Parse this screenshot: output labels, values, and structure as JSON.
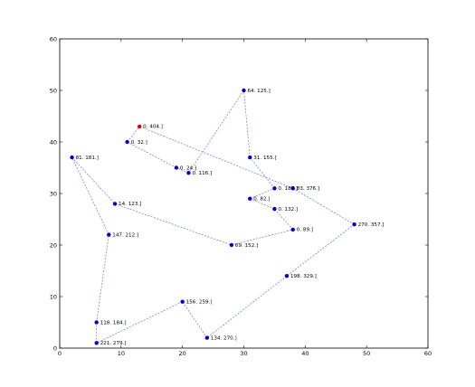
{
  "chart_data": {
    "type": "scatter",
    "title": "",
    "xlabel": "",
    "ylabel": "",
    "xlim": [
      0,
      60
    ],
    "ylim": [
      0,
      60
    ],
    "x_ticks": [
      0,
      10,
      20,
      30,
      40,
      50,
      60
    ],
    "y_ticks": [
      0,
      10,
      20,
      30,
      40,
      50,
      60
    ],
    "grid": false,
    "route_color": "#6b77c8",
    "point_color": "#0000cc",
    "start_color": "#dd0000",
    "points": [
      {
        "x": 13,
        "y": 43,
        "label": "0.  404.]",
        "start": true
      },
      {
        "x": 11,
        "y": 40,
        "label": "0.  32.]"
      },
      {
        "x": 19,
        "y": 35,
        "label": "0.  24.]"
      },
      {
        "x": 21,
        "y": 34,
        "label": "0.  116.]"
      },
      {
        "x": 30,
        "y": 50,
        "label": "64.  125.]"
      },
      {
        "x": 31,
        "y": 37,
        "label": "31.  155.]"
      },
      {
        "x": 35,
        "y": 31,
        "label": "0.  187.]"
      },
      {
        "x": 38,
        "y": 31,
        "label": "83.  376.]"
      },
      {
        "x": 31,
        "y": 29,
        "label": "0.  82.]"
      },
      {
        "x": 35,
        "y": 27,
        "label": "0.  132.]"
      },
      {
        "x": 38,
        "y": 23,
        "label": "0.  89.]"
      },
      {
        "x": 48,
        "y": 24,
        "label": "270.  357.]"
      },
      {
        "x": 37,
        "y": 14,
        "label": "198.  329.]"
      },
      {
        "x": 24,
        "y": 2,
        "label": "134.  270.]"
      },
      {
        "x": 20,
        "y": 9,
        "label": "156.  259.]"
      },
      {
        "x": 6,
        "y": 5,
        "label": "118.  184.]"
      },
      {
        "x": 6,
        "y": 1,
        "label": "221.  279.]"
      },
      {
        "x": 8,
        "y": 22,
        "label": "147.  212.]"
      },
      {
        "x": 2,
        "y": 37,
        "label": "81.  181.]"
      },
      {
        "x": 9,
        "y": 28,
        "label": "14.  123.]"
      },
      {
        "x": 28,
        "y": 20,
        "label": "69.  152.]"
      }
    ],
    "route": [
      [
        [
          13,
          43
        ],
        [
          38,
          31
        ]
      ],
      [
        [
          38,
          31
        ],
        [
          48,
          24
        ]
      ],
      [
        [
          48,
          24
        ],
        [
          37,
          14
        ]
      ],
      [
        [
          37,
          14
        ],
        [
          24,
          2
        ]
      ],
      [
        [
          24,
          2
        ],
        [
          20,
          9
        ]
      ],
      [
        [
          20,
          9
        ],
        [
          6,
          1
        ]
      ],
      [
        [
          6,
          1
        ],
        [
          6,
          5
        ]
      ],
      [
        [
          6,
          5
        ],
        [
          8,
          22
        ]
      ],
      [
        [
          8,
          22
        ],
        [
          2,
          37
        ]
      ],
      [
        [
          2,
          37
        ],
        [
          9,
          28
        ]
      ],
      [
        [
          9,
          28
        ],
        [
          28,
          20
        ]
      ],
      [
        [
          28,
          20
        ],
        [
          38,
          23
        ]
      ],
      [
        [
          38,
          23
        ],
        [
          35,
          27
        ]
      ],
      [
        [
          35,
          27
        ],
        [
          31,
          29
        ]
      ],
      [
        [
          31,
          29
        ],
        [
          35,
          31
        ]
      ],
      [
        [
          35,
          31
        ],
        [
          31,
          37
        ]
      ],
      [
        [
          31,
          37
        ],
        [
          30,
          50
        ]
      ],
      [
        [
          30,
          50
        ],
        [
          21,
          34
        ]
      ],
      [
        [
          21,
          34
        ],
        [
          19,
          35
        ]
      ],
      [
        [
          19,
          35
        ],
        [
          11,
          40
        ]
      ],
      [
        [
          11,
          40
        ],
        [
          13,
          43
        ]
      ]
    ]
  }
}
